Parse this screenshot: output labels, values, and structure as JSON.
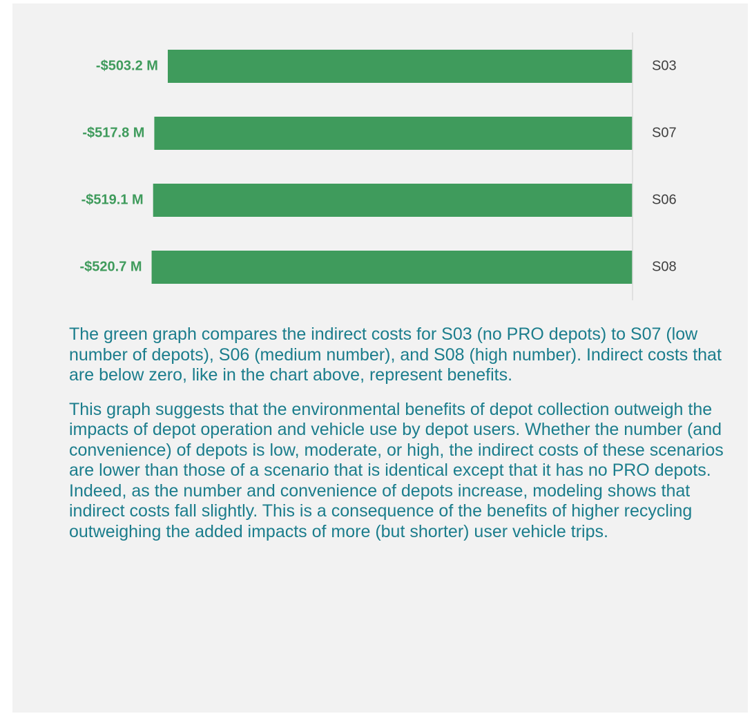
{
  "chart_data": {
    "type": "bar",
    "orientation": "horizontal",
    "categories": [
      "S03",
      "S07",
      "S06",
      "S08"
    ],
    "values": [
      -503.2,
      -517.8,
      -519.1,
      -520.7
    ],
    "value_labels": [
      "-$503.2 M",
      "-$517.8 M",
      "-$519.1 M",
      "-$520.7 M"
    ],
    "color": "#3f9b5c",
    "xlim": [
      -560,
      0
    ],
    "grid": false
  },
  "text": {
    "paragraphs": [
      "The green graph compares the indirect costs for S03 (no PRO depots) to S07 (low number of depots), S06 (medium number), and S08 (high number). Indirect costs that are below zero, like in the chart above, represent benefits.",
      "This graph suggests that the environmental benefits of depot collection outweigh the impacts of depot operation and vehicle use by depot users. Whether the number (and convenience) of depots is low, moderate, or high, the indirect costs of these scenarios are lower than those of a scenario that is identical except that it has no PRO depots. Indeed, as the number and convenience of depots increase, modeling shows that indirect costs fall slightly. This is a consequence of the benefits of higher recycling outweighing the added impacts of more (but shorter) user vehicle trips."
    ]
  }
}
